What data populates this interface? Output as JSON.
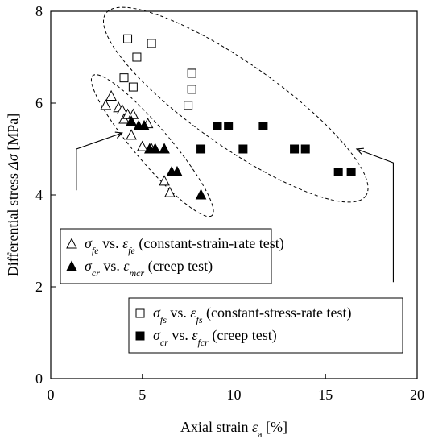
{
  "chart_data": {
    "type": "scatter",
    "xlabel": {
      "main": "Axial strain ",
      "sym": "ε",
      "sub": "a",
      "unit": " [%]"
    },
    "ylabel": {
      "main": "Differential stress ",
      "sym": "Δσ",
      "unit": " [MPa]"
    },
    "xlim": [
      0,
      20
    ],
    "ylim": [
      0,
      8
    ],
    "xticks": [
      0,
      5,
      10,
      15,
      20
    ],
    "yticks": [
      0,
      2,
      4,
      6,
      8
    ],
    "grid": false,
    "series": [
      {
        "marker": "triangle-open",
        "legend": [
          {
            "t": "σ",
            "c": "it"
          },
          {
            "t": "fe",
            "c": "sub"
          },
          {
            "t": " vs. ",
            "c": ""
          },
          {
            "t": "ε",
            "c": "it"
          },
          {
            "t": "fe",
            "c": "sub"
          },
          {
            "t": " (constant-strain-rate test)",
            "c": ""
          }
        ],
        "points": [
          [
            3.0,
            5.95
          ],
          [
            3.3,
            6.15
          ],
          [
            3.7,
            5.9
          ],
          [
            3.9,
            5.85
          ],
          [
            4.0,
            5.65
          ],
          [
            4.2,
            5.75
          ],
          [
            4.4,
            5.3
          ],
          [
            4.5,
            5.75
          ],
          [
            5.0,
            5.05
          ],
          [
            5.3,
            5.55
          ],
          [
            5.5,
            5.0
          ],
          [
            6.2,
            4.3
          ],
          [
            6.5,
            4.05
          ]
        ],
        "color": "#000000"
      },
      {
        "marker": "triangle-filled",
        "legend": [
          {
            "t": "σ",
            "c": "it"
          },
          {
            "t": "cr",
            "c": "sub"
          },
          {
            "t": " vs. ",
            "c": ""
          },
          {
            "t": "ε",
            "c": "it"
          },
          {
            "t": "mcr",
            "c": "sub"
          },
          {
            "t": " (creep test)",
            "c": ""
          }
        ],
        "points": [
          [
            4.4,
            5.6
          ],
          [
            4.8,
            5.5
          ],
          [
            5.1,
            5.5
          ],
          [
            5.4,
            5.0
          ],
          [
            5.7,
            5.0
          ],
          [
            6.2,
            5.0
          ],
          [
            6.6,
            4.5
          ],
          [
            6.9,
            4.5
          ],
          [
            8.2,
            4.0
          ]
        ],
        "color": "#000000"
      },
      {
        "marker": "square-open",
        "legend": [
          {
            "t": "σ",
            "c": "it"
          },
          {
            "t": "fs",
            "c": "sub"
          },
          {
            "t": " vs. ",
            "c": ""
          },
          {
            "t": "ε",
            "c": "it"
          },
          {
            "t": "fs",
            "c": "sub"
          },
          {
            "t": " (constant-stress-rate test)",
            "c": ""
          }
        ],
        "points": [
          [
            4.2,
            7.4
          ],
          [
            5.5,
            7.3
          ],
          [
            4.7,
            7.0
          ],
          [
            4.0,
            6.55
          ],
          [
            4.5,
            6.35
          ],
          [
            7.7,
            6.65
          ],
          [
            7.7,
            6.3
          ],
          [
            7.5,
            5.95
          ]
        ],
        "color": "#000000"
      },
      {
        "marker": "square-filled",
        "legend": [
          {
            "t": "σ",
            "c": "it"
          },
          {
            "t": "cr",
            "c": "sub"
          },
          {
            "t": " vs. ",
            "c": ""
          },
          {
            "t": "ε",
            "c": "it"
          },
          {
            "t": "fcr",
            "c": "sub"
          },
          {
            "t": " (creep test)",
            "c": ""
          }
        ],
        "points": [
          [
            9.1,
            5.5
          ],
          [
            9.7,
            5.5
          ],
          [
            11.6,
            5.5
          ],
          [
            8.2,
            5.0
          ],
          [
            10.5,
            5.0
          ],
          [
            13.3,
            5.0
          ],
          [
            13.9,
            5.0
          ],
          [
            15.7,
            4.5
          ],
          [
            16.4,
            4.5
          ]
        ],
        "color": "#000000"
      }
    ]
  }
}
